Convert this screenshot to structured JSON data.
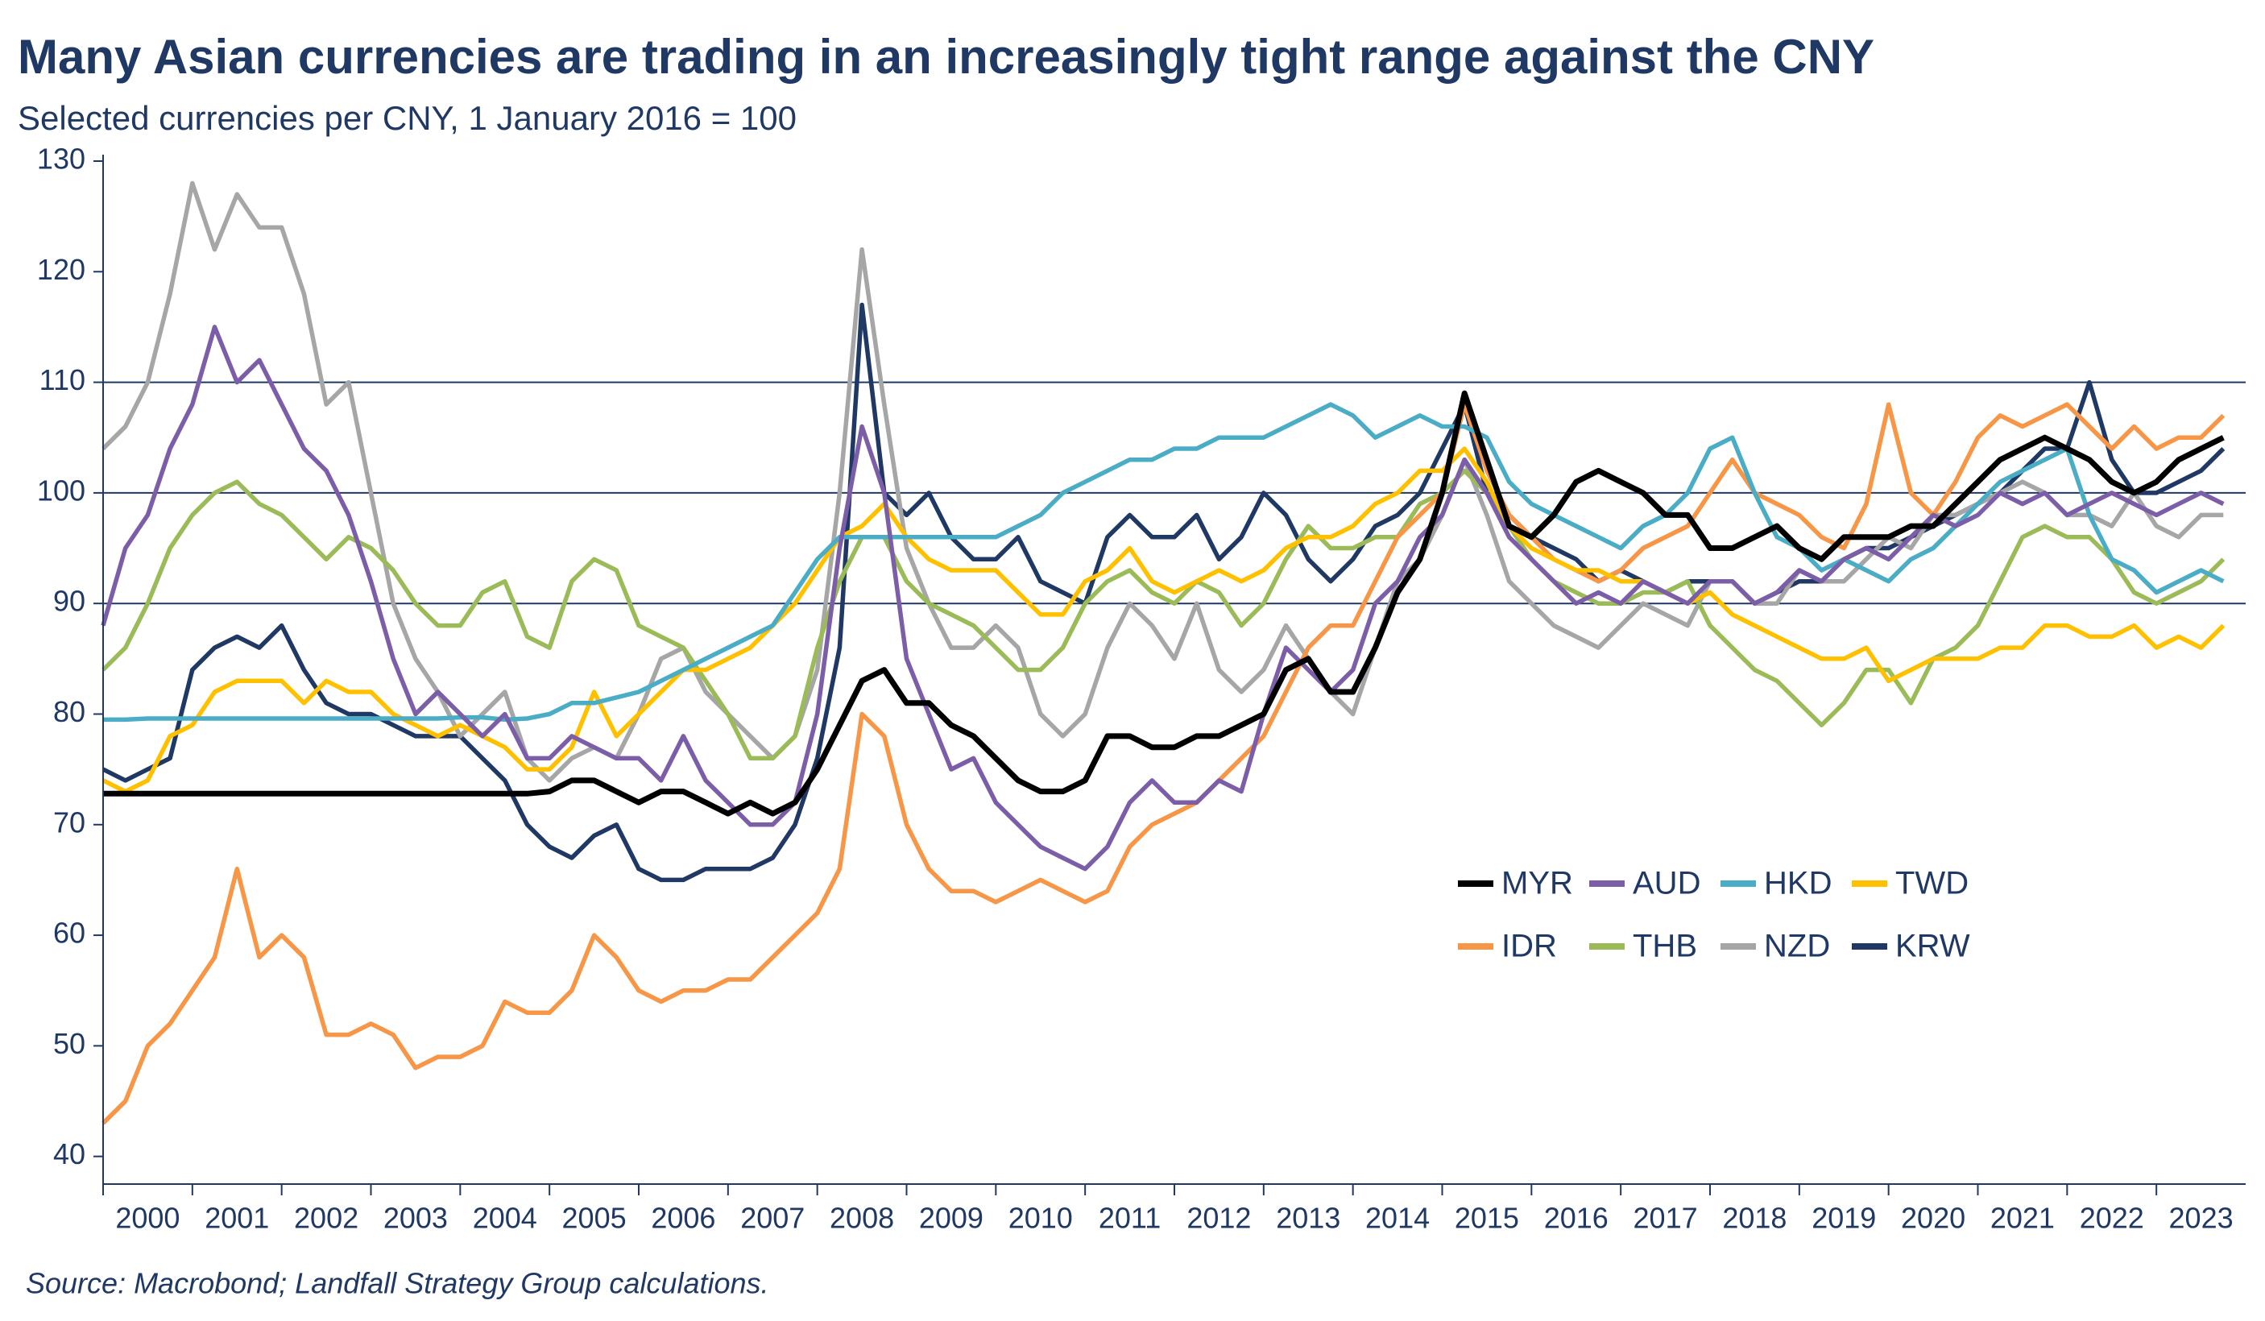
{
  "chart_data": {
    "type": "line",
    "title": "Many Asian currencies are trading in an increasingly tight range against the CNY",
    "subtitle": "Selected currencies per CNY, 1 January 2016 = 100",
    "source": "Source: Macrobond; Landfall Strategy Group calculations.",
    "x": [
      2000,
      2000.25,
      2000.5,
      2000.75,
      2001,
      2001.25,
      2001.5,
      2001.75,
      2002,
      2002.25,
      2002.5,
      2002.75,
      2003,
      2003.25,
      2003.5,
      2003.75,
      2004,
      2004.25,
      2004.5,
      2004.75,
      2005,
      2005.25,
      2005.5,
      2005.75,
      2006,
      2006.25,
      2006.5,
      2006.75,
      2007,
      2007.25,
      2007.5,
      2007.75,
      2008,
      2008.25,
      2008.5,
      2008.75,
      2009,
      2009.25,
      2009.5,
      2009.75,
      2010,
      2010.25,
      2010.5,
      2010.75,
      2011,
      2011.25,
      2011.5,
      2011.75,
      2012,
      2012.25,
      2012.5,
      2012.75,
      2013,
      2013.25,
      2013.5,
      2013.75,
      2014,
      2014.25,
      2014.5,
      2014.75,
      2015,
      2015.25,
      2015.5,
      2015.75,
      2016,
      2016.25,
      2016.5,
      2016.75,
      2017,
      2017.25,
      2017.5,
      2017.75,
      2018,
      2018.25,
      2018.5,
      2018.75,
      2019,
      2019.25,
      2019.5,
      2019.75,
      2020,
      2020.25,
      2020.5,
      2020.75,
      2021,
      2021.25,
      2021.5,
      2021.75,
      2022,
      2022.25,
      2022.5,
      2022.75,
      2023,
      2023.25,
      2023.5,
      2023.75
    ],
    "series": [
      {
        "name": "MYR",
        "color": "#000000",
        "values": [
          72.8,
          72.8,
          72.8,
          72.8,
          72.8,
          72.8,
          72.8,
          72.8,
          72.8,
          72.8,
          72.8,
          72.8,
          72.8,
          72.8,
          72.8,
          72.8,
          72.8,
          72.8,
          72.8,
          72.8,
          73,
          74,
          74,
          73,
          72,
          73,
          73,
          72,
          71,
          72,
          71,
          72,
          75,
          79,
          83,
          84,
          81,
          81,
          79,
          78,
          76,
          74,
          73,
          73,
          74,
          78,
          78,
          77,
          77,
          78,
          78,
          79,
          80,
          84,
          85,
          82,
          82,
          86,
          91,
          94,
          100,
          109,
          103,
          97,
          96,
          98,
          101,
          102,
          101,
          100,
          98,
          98,
          95,
          95,
          96,
          97,
          95,
          94,
          96,
          96,
          96,
          97,
          97,
          99,
          101,
          103,
          104,
          105,
          104,
          103,
          101,
          100,
          101,
          103,
          104,
          105
        ]
      },
      {
        "name": "AUD",
        "color": "#7b5ea7",
        "values": [
          88,
          95,
          98,
          104,
          108,
          115,
          110,
          112,
          108,
          104,
          102,
          98,
          92,
          85,
          80,
          82,
          80,
          78,
          80,
          76,
          76,
          78,
          77,
          76,
          76,
          74,
          78,
          74,
          72,
          70,
          70,
          72,
          80,
          95,
          106,
          100,
          85,
          80,
          75,
          76,
          72,
          70,
          68,
          67,
          66,
          68,
          72,
          74,
          72,
          72,
          74,
          73,
          80,
          86,
          84,
          82,
          84,
          90,
          92,
          96,
          98,
          103,
          100,
          96,
          94,
          92,
          90,
          91,
          90,
          92,
          91,
          90,
          92,
          92,
          90,
          91,
          93,
          92,
          94,
          95,
          94,
          96,
          98,
          97,
          98,
          100,
          99,
          100,
          98,
          99,
          100,
          99,
          98,
          99,
          100,
          99
        ]
      },
      {
        "name": "HKD",
        "color": "#4bacc6",
        "values": [
          79.5,
          79.5,
          79.6,
          79.6,
          79.6,
          79.6,
          79.6,
          79.6,
          79.6,
          79.6,
          79.6,
          79.6,
          79.6,
          79.6,
          79.6,
          79.6,
          79.7,
          79.7,
          79.5,
          79.6,
          80,
          81,
          81,
          81.5,
          82,
          83,
          84,
          85,
          86,
          87,
          88,
          91,
          94,
          96,
          96,
          96,
          96,
          96,
          96,
          96,
          96,
          97,
          98,
          100,
          101,
          102,
          103,
          103,
          104,
          104,
          105,
          105,
          105,
          106,
          107,
          108,
          107,
          105,
          106,
          107,
          106,
          106,
          105,
          101,
          99,
          98,
          97,
          96,
          95,
          97,
          98,
          100,
          104,
          105,
          100,
          96,
          95,
          93,
          94,
          93,
          92,
          94,
          95,
          97,
          99,
          101,
          102,
          103,
          104,
          98,
          94,
          93,
          91,
          92,
          93,
          92
        ]
      },
      {
        "name": "TWD",
        "color": "#ffc000",
        "values": [
          74,
          73,
          74,
          78,
          79,
          82,
          83,
          83,
          83,
          81,
          83,
          82,
          82,
          80,
          79,
          78,
          79,
          78,
          77,
          75,
          75,
          77,
          82,
          78,
          80,
          82,
          84,
          84,
          85,
          86,
          88,
          90,
          93,
          96,
          97,
          99,
          96,
          94,
          93,
          93,
          93,
          91,
          89,
          89,
          92,
          93,
          95,
          92,
          91,
          92,
          93,
          92,
          93,
          95,
          96,
          96,
          97,
          99,
          100,
          102,
          102,
          104,
          101,
          97,
          95,
          94,
          93,
          93,
          92,
          92,
          91,
          90,
          91,
          89,
          88,
          87,
          86,
          85,
          85,
          86,
          83,
          84,
          85,
          85,
          85,
          86,
          86,
          88,
          88,
          87,
          87,
          88,
          86,
          87,
          86,
          88
        ]
      },
      {
        "name": "IDR",
        "color": "#f79646",
        "values": [
          43,
          45,
          50,
          52,
          55,
          58,
          66,
          58,
          60,
          58,
          51,
          51,
          52,
          51,
          48,
          49,
          49,
          50,
          54,
          53,
          53,
          55,
          60,
          58,
          55,
          54,
          55,
          55,
          56,
          56,
          58,
          60,
          62,
          66,
          80,
          78,
          70,
          66,
          64,
          64,
          63,
          64,
          65,
          64,
          63,
          64,
          68,
          70,
          71,
          72,
          74,
          76,
          78,
          82,
          86,
          88,
          88,
          92,
          96,
          98,
          100,
          108,
          102,
          98,
          96,
          94,
          93,
          92,
          93,
          95,
          96,
          97,
          100,
          103,
          100,
          99,
          98,
          96,
          95,
          99,
          108,
          100,
          98,
          101,
          105,
          107,
          106,
          107,
          108,
          106,
          104,
          106,
          104,
          105,
          105,
          107
        ]
      },
      {
        "name": "THB",
        "color": "#9bbb59",
        "values": [
          84,
          86,
          90,
          95,
          98,
          100,
          101,
          99,
          98,
          96,
          94,
          96,
          95,
          93,
          90,
          88,
          88,
          91,
          92,
          87,
          86,
          92,
          94,
          93,
          88,
          87,
          86,
          83,
          80,
          76,
          76,
          78,
          86,
          92,
          96,
          96,
          92,
          90,
          89,
          88,
          86,
          84,
          84,
          86,
          90,
          92,
          93,
          91,
          90,
          92,
          91,
          88,
          90,
          94,
          97,
          95,
          95,
          96,
          96,
          99,
          100,
          102,
          100,
          97,
          94,
          92,
          91,
          90,
          90,
          91,
          91,
          92,
          88,
          86,
          84,
          83,
          81,
          79,
          81,
          84,
          84,
          81,
          85,
          86,
          88,
          92,
          96,
          97,
          96,
          96,
          94,
          91,
          90,
          91,
          92,
          94
        ]
      },
      {
        "name": "NZD",
        "color": "#a6a6a6",
        "values": [
          104,
          106,
          110,
          118,
          128,
          122,
          127,
          124,
          124,
          118,
          108,
          110,
          100,
          90,
          85,
          82,
          78,
          80,
          82,
          76,
          74,
          76,
          77,
          76,
          80,
          85,
          86,
          82,
          80,
          78,
          76,
          78,
          84,
          100,
          122,
          108,
          95,
          90,
          86,
          86,
          88,
          86,
          80,
          78,
          80,
          86,
          90,
          88,
          85,
          90,
          84,
          82,
          84,
          88,
          85,
          82,
          80,
          86,
          92,
          94,
          98,
          103,
          98,
          92,
          90,
          88,
          87,
          86,
          88,
          90,
          89,
          88,
          92,
          92,
          90,
          90,
          93,
          92,
          92,
          94,
          96,
          95,
          98,
          98,
          99,
          100,
          101,
          100,
          98,
          98,
          97,
          100,
          97,
          96,
          98,
          98
        ]
      },
      {
        "name": "KRW",
        "color": "#1f3864",
        "values": [
          75,
          74,
          75,
          76,
          84,
          86,
          87,
          86,
          88,
          84,
          81,
          80,
          80,
          79,
          78,
          78,
          78,
          76,
          74,
          70,
          68,
          67,
          69,
          70,
          66,
          65,
          65,
          66,
          66,
          66,
          67,
          70,
          76,
          86,
          117,
          100,
          98,
          100,
          96,
          94,
          94,
          96,
          92,
          91,
          90,
          96,
          98,
          96,
          96,
          98,
          94,
          96,
          100,
          98,
          94,
          92,
          94,
          97,
          98,
          100,
          104,
          108,
          100,
          98,
          96,
          95,
          94,
          92,
          93,
          92,
          91,
          92,
          92,
          92,
          90,
          91,
          92,
          92,
          94,
          95,
          95,
          96,
          97,
          98,
          99,
          100,
          102,
          104,
          104,
          110,
          103,
          100,
          100,
          101,
          102,
          104
        ]
      }
    ],
    "xlim": [
      2000,
      2024
    ],
    "xticks": [
      {
        "value": 2000.5,
        "label": "2000"
      },
      {
        "value": 2001.5,
        "label": "2001"
      },
      {
        "value": 2002.5,
        "label": "2002"
      },
      {
        "value": 2003.5,
        "label": "2003"
      },
      {
        "value": 2004.5,
        "label": "2004"
      },
      {
        "value": 2005.5,
        "label": "2005"
      },
      {
        "value": 2006.5,
        "label": "2006"
      },
      {
        "value": 2007.5,
        "label": "2007"
      },
      {
        "value": 2008.5,
        "label": "2008"
      },
      {
        "value": 2009.5,
        "label": "2009"
      },
      {
        "value": 2010.5,
        "label": "2010"
      },
      {
        "value": 2011.5,
        "label": "2011"
      },
      {
        "value": 2012.5,
        "label": "2012"
      },
      {
        "value": 2013.5,
        "label": "2013"
      },
      {
        "value": 2014.5,
        "label": "2014"
      },
      {
        "value": 2015.5,
        "label": "2015"
      },
      {
        "value": 2016.5,
        "label": "2016"
      },
      {
        "value": 2017.5,
        "label": "2017"
      },
      {
        "value": 2018.5,
        "label": "2018"
      },
      {
        "value": 2019.5,
        "label": "2019"
      },
      {
        "value": 2020.5,
        "label": "2020"
      },
      {
        "value": 2021.5,
        "label": "2021"
      },
      {
        "value": 2022.5,
        "label": "2022"
      },
      {
        "value": 2023.5,
        "label": "2023"
      }
    ],
    "ylim": [
      37.5,
      130
    ],
    "yticks": [
      40,
      50,
      60,
      70,
      80,
      90,
      100,
      110,
      120,
      130
    ],
    "gridlines": [
      90,
      100,
      110
    ]
  }
}
